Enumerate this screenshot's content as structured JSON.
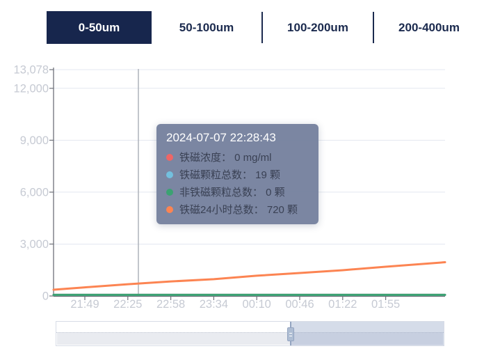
{
  "tabs": {
    "active_bg": "#17264d",
    "text_color": "#1b2a4e",
    "divider_color": "#1b2a4e",
    "items": [
      {
        "label": "0-50um",
        "active": true
      },
      {
        "label": "50-100um",
        "active": false
      },
      {
        "label": "100-200um",
        "active": false
      },
      {
        "label": "200-400um",
        "active": false
      }
    ]
  },
  "tooltip": {
    "bg": "rgba(118,129,158,0.96)",
    "title": "2024-07-07 22:28:43",
    "rows": [
      {
        "text": "铁磁浓度： 0 mg/ml"
      },
      {
        "text": "铁磁颗粒总数： 19 颗"
      },
      {
        "text": "非铁磁颗粒总数： 0 颗"
      },
      {
        "text": "铁磁24小时总数： 720 颗"
      }
    ]
  },
  "chart_data": {
    "type": "line",
    "title": "",
    "xlabel": "",
    "ylabel": "",
    "x_ticks": [
      "21:49",
      "22:25",
      "22:58",
      "23:34",
      "00:10",
      "00:46",
      "01:22",
      "01:55"
    ],
    "y_ticks": [
      "13,078",
      "12,000",
      "9,000",
      "6,000",
      "3,000",
      "0"
    ],
    "y_tick_values": [
      13078,
      12000,
      9000,
      6000,
      3000,
      0
    ],
    "ylim": [
      0,
      13078
    ],
    "grid": true,
    "legend_position": "none",
    "hover_time": "2024-07-07 22:28:43",
    "series": [
      {
        "name": "铁磁浓度",
        "unit": "mg/ml",
        "color": "#ee6666",
        "hover_value": 0,
        "values": [
          0,
          0,
          0,
          0,
          0,
          0,
          0,
          0
        ],
        "edge_values": [
          0,
          0
        ]
      },
      {
        "name": "铁磁颗粒总数",
        "unit": "颗",
        "color": "#73c0de",
        "hover_value": 19,
        "values": [
          19,
          19,
          19,
          19,
          19,
          19,
          19,
          19
        ],
        "edge_values": [
          19,
          19
        ]
      },
      {
        "name": "非铁磁颗粒总数",
        "unit": "颗",
        "color": "#3ba272",
        "hover_value": 0,
        "values": [
          0,
          0,
          0,
          0,
          0,
          0,
          0,
          0
        ],
        "edge_values": [
          0,
          0
        ]
      },
      {
        "name": "铁磁24小时总数",
        "unit": "颗",
        "color": "#fc8452",
        "hover_value": 720,
        "values": [
          500,
          680,
          840,
          970,
          1170,
          1330,
          1490,
          1690
        ],
        "edge_values": [
          360,
          1950
        ]
      }
    ]
  },
  "datazoom": {
    "track_bg": "#ffffff",
    "shadow_bg": "#e9ebf0",
    "selected_tint": "rgba(144,164,198,0.38)",
    "handle_color": "#aebdd3"
  }
}
